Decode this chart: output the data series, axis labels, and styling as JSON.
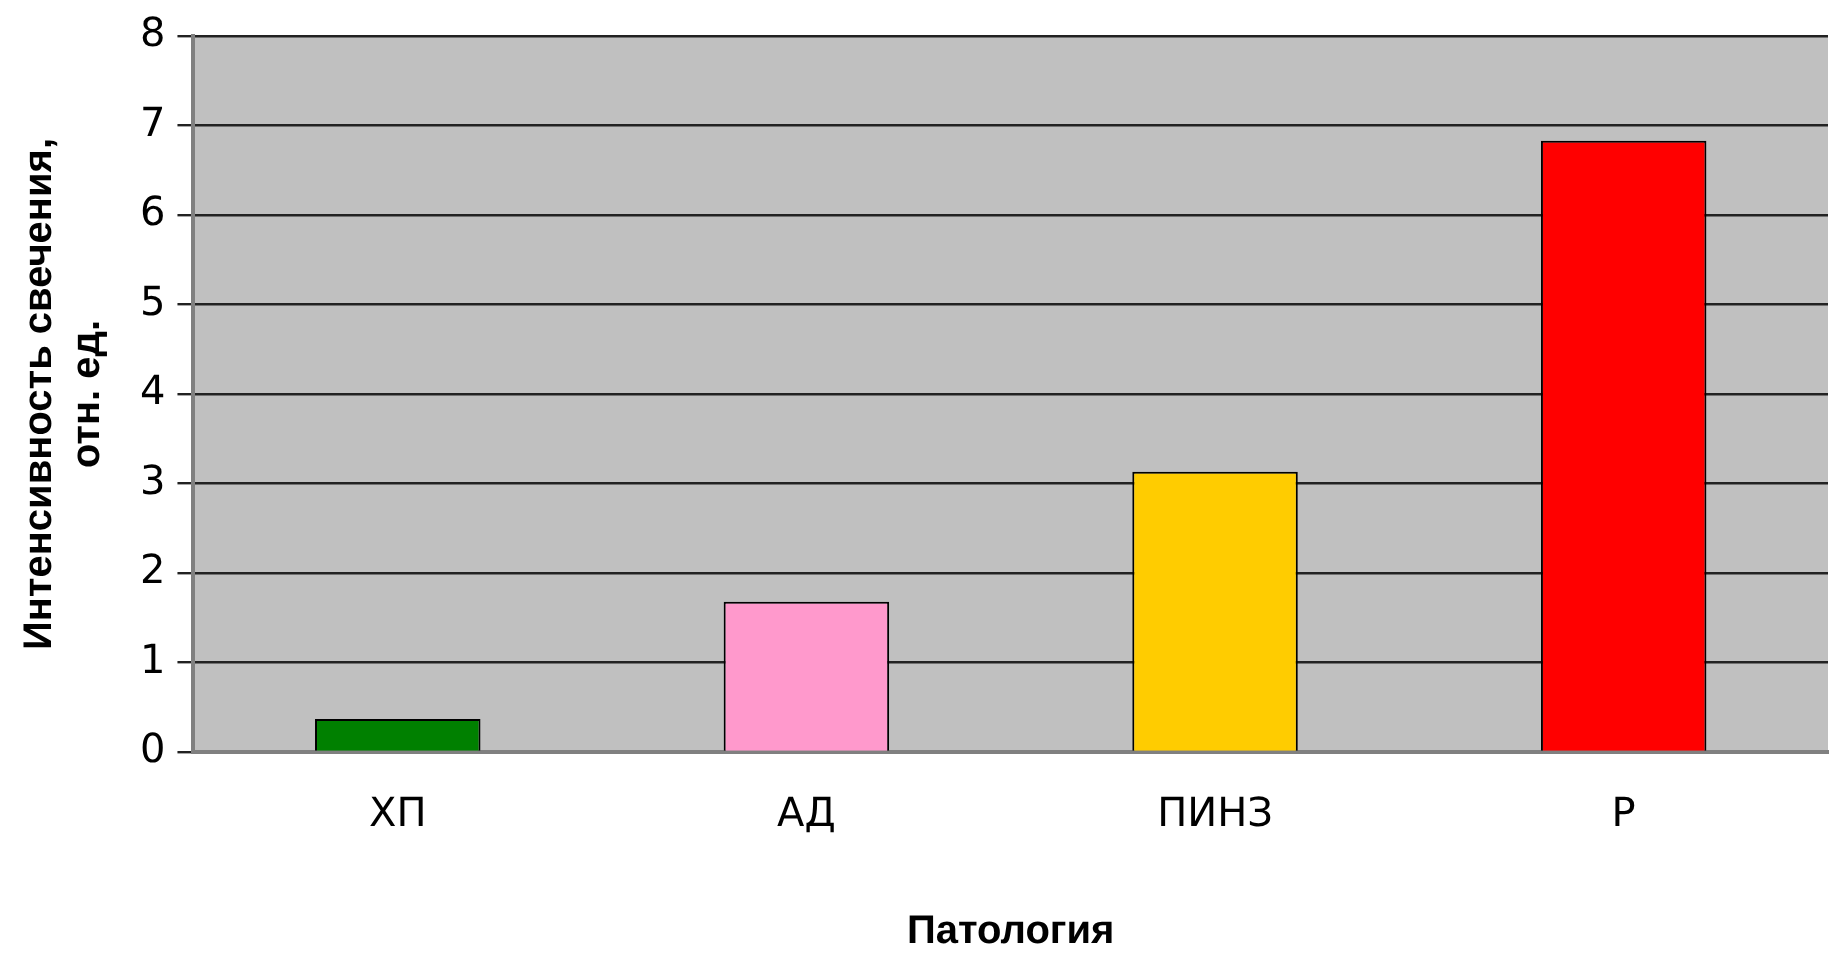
{
  "chart_data": {
    "type": "bar",
    "xlabel": "Патология",
    "ylabel": "Интенсивность свечения, отн. ед.",
    "categories": [
      "ХП",
      "АД",
      "ПИНЗ",
      "Р"
    ],
    "values": [
      0.37,
      1.68,
      3.13,
      6.83
    ],
    "colors": [
      "#008000",
      "#ff99cc",
      "#ffcc00",
      "#ff0000"
    ],
    "ylim": [
      0,
      8
    ],
    "yticks": [
      0,
      1,
      2,
      3,
      4,
      5,
      6,
      7,
      8
    ],
    "grid": "y",
    "legend": false
  }
}
